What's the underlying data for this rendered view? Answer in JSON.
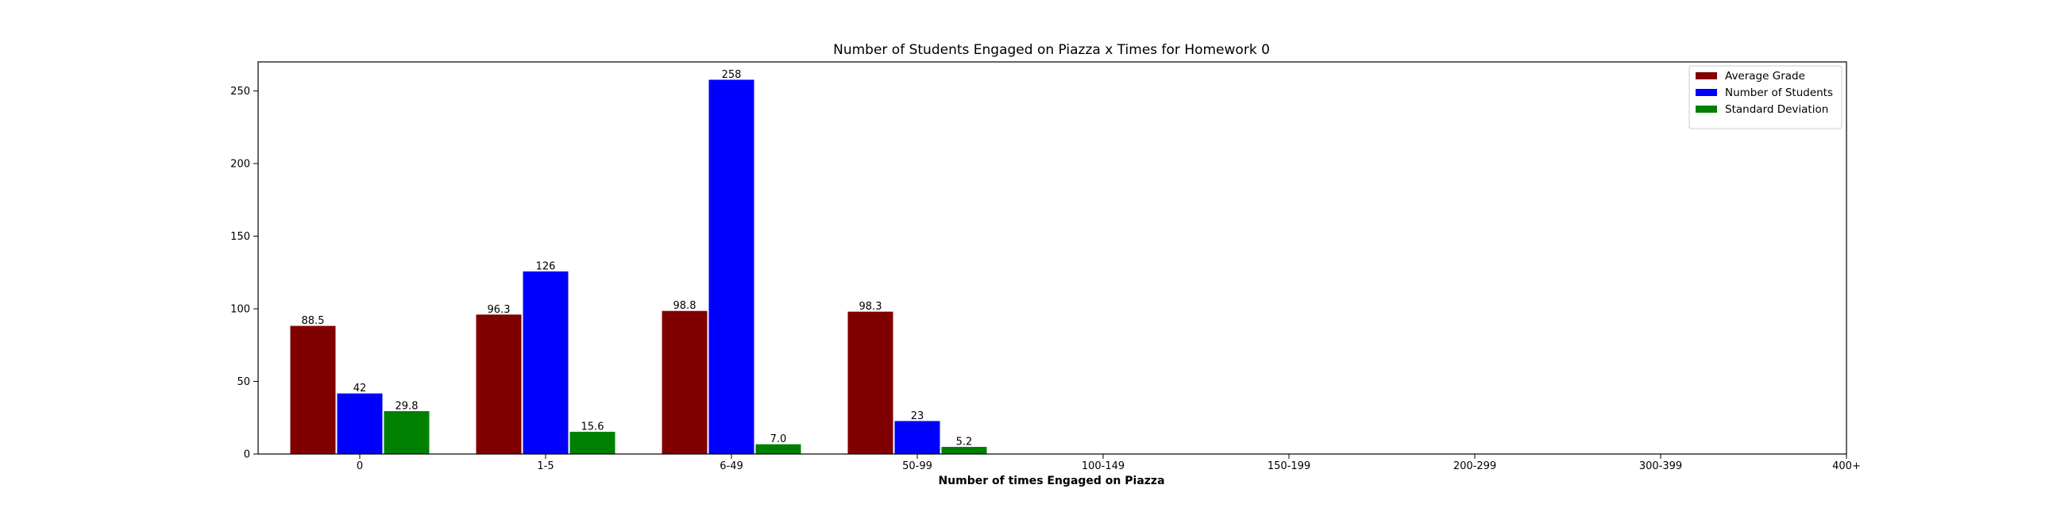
{
  "chart_data": {
    "type": "bar",
    "title": "Number of Students Engaged on Piazza x Times for Homework 0",
    "xlabel": "Number of times Engaged on Piazza",
    "ylabel": "",
    "categories": [
      "0",
      "1-5",
      "6-49",
      "50-99",
      "100-149",
      "150-199",
      "200-299",
      "300-399",
      "400+"
    ],
    "ylim": [
      0,
      270
    ],
    "yticks": [
      0,
      50,
      100,
      150,
      200,
      250
    ],
    "grid": false,
    "legend_position": "top-right",
    "series": [
      {
        "name": "Average Grade",
        "color": "#800000",
        "values": [
          88.5,
          96.3,
          98.8,
          98.3,
          null,
          null,
          null,
          null,
          null
        ],
        "labels": [
          "88.5",
          "96.3",
          "98.8",
          "98.3",
          "",
          "",
          "",
          "",
          ""
        ]
      },
      {
        "name": "Number of Students",
        "color": "#0000ff",
        "values": [
          42,
          126,
          258,
          23,
          null,
          null,
          null,
          null,
          null
        ],
        "labels": [
          "42",
          "126",
          "258",
          "23",
          "",
          "",
          "",
          "",
          ""
        ]
      },
      {
        "name": "Standard Deviation",
        "color": "#008000",
        "values": [
          29.8,
          15.6,
          7.0,
          5.2,
          null,
          null,
          null,
          null,
          null
        ],
        "labels": [
          "29.8",
          "15.6",
          "7.0",
          "5.2",
          "",
          "",
          "",
          "",
          ""
        ]
      }
    ]
  }
}
